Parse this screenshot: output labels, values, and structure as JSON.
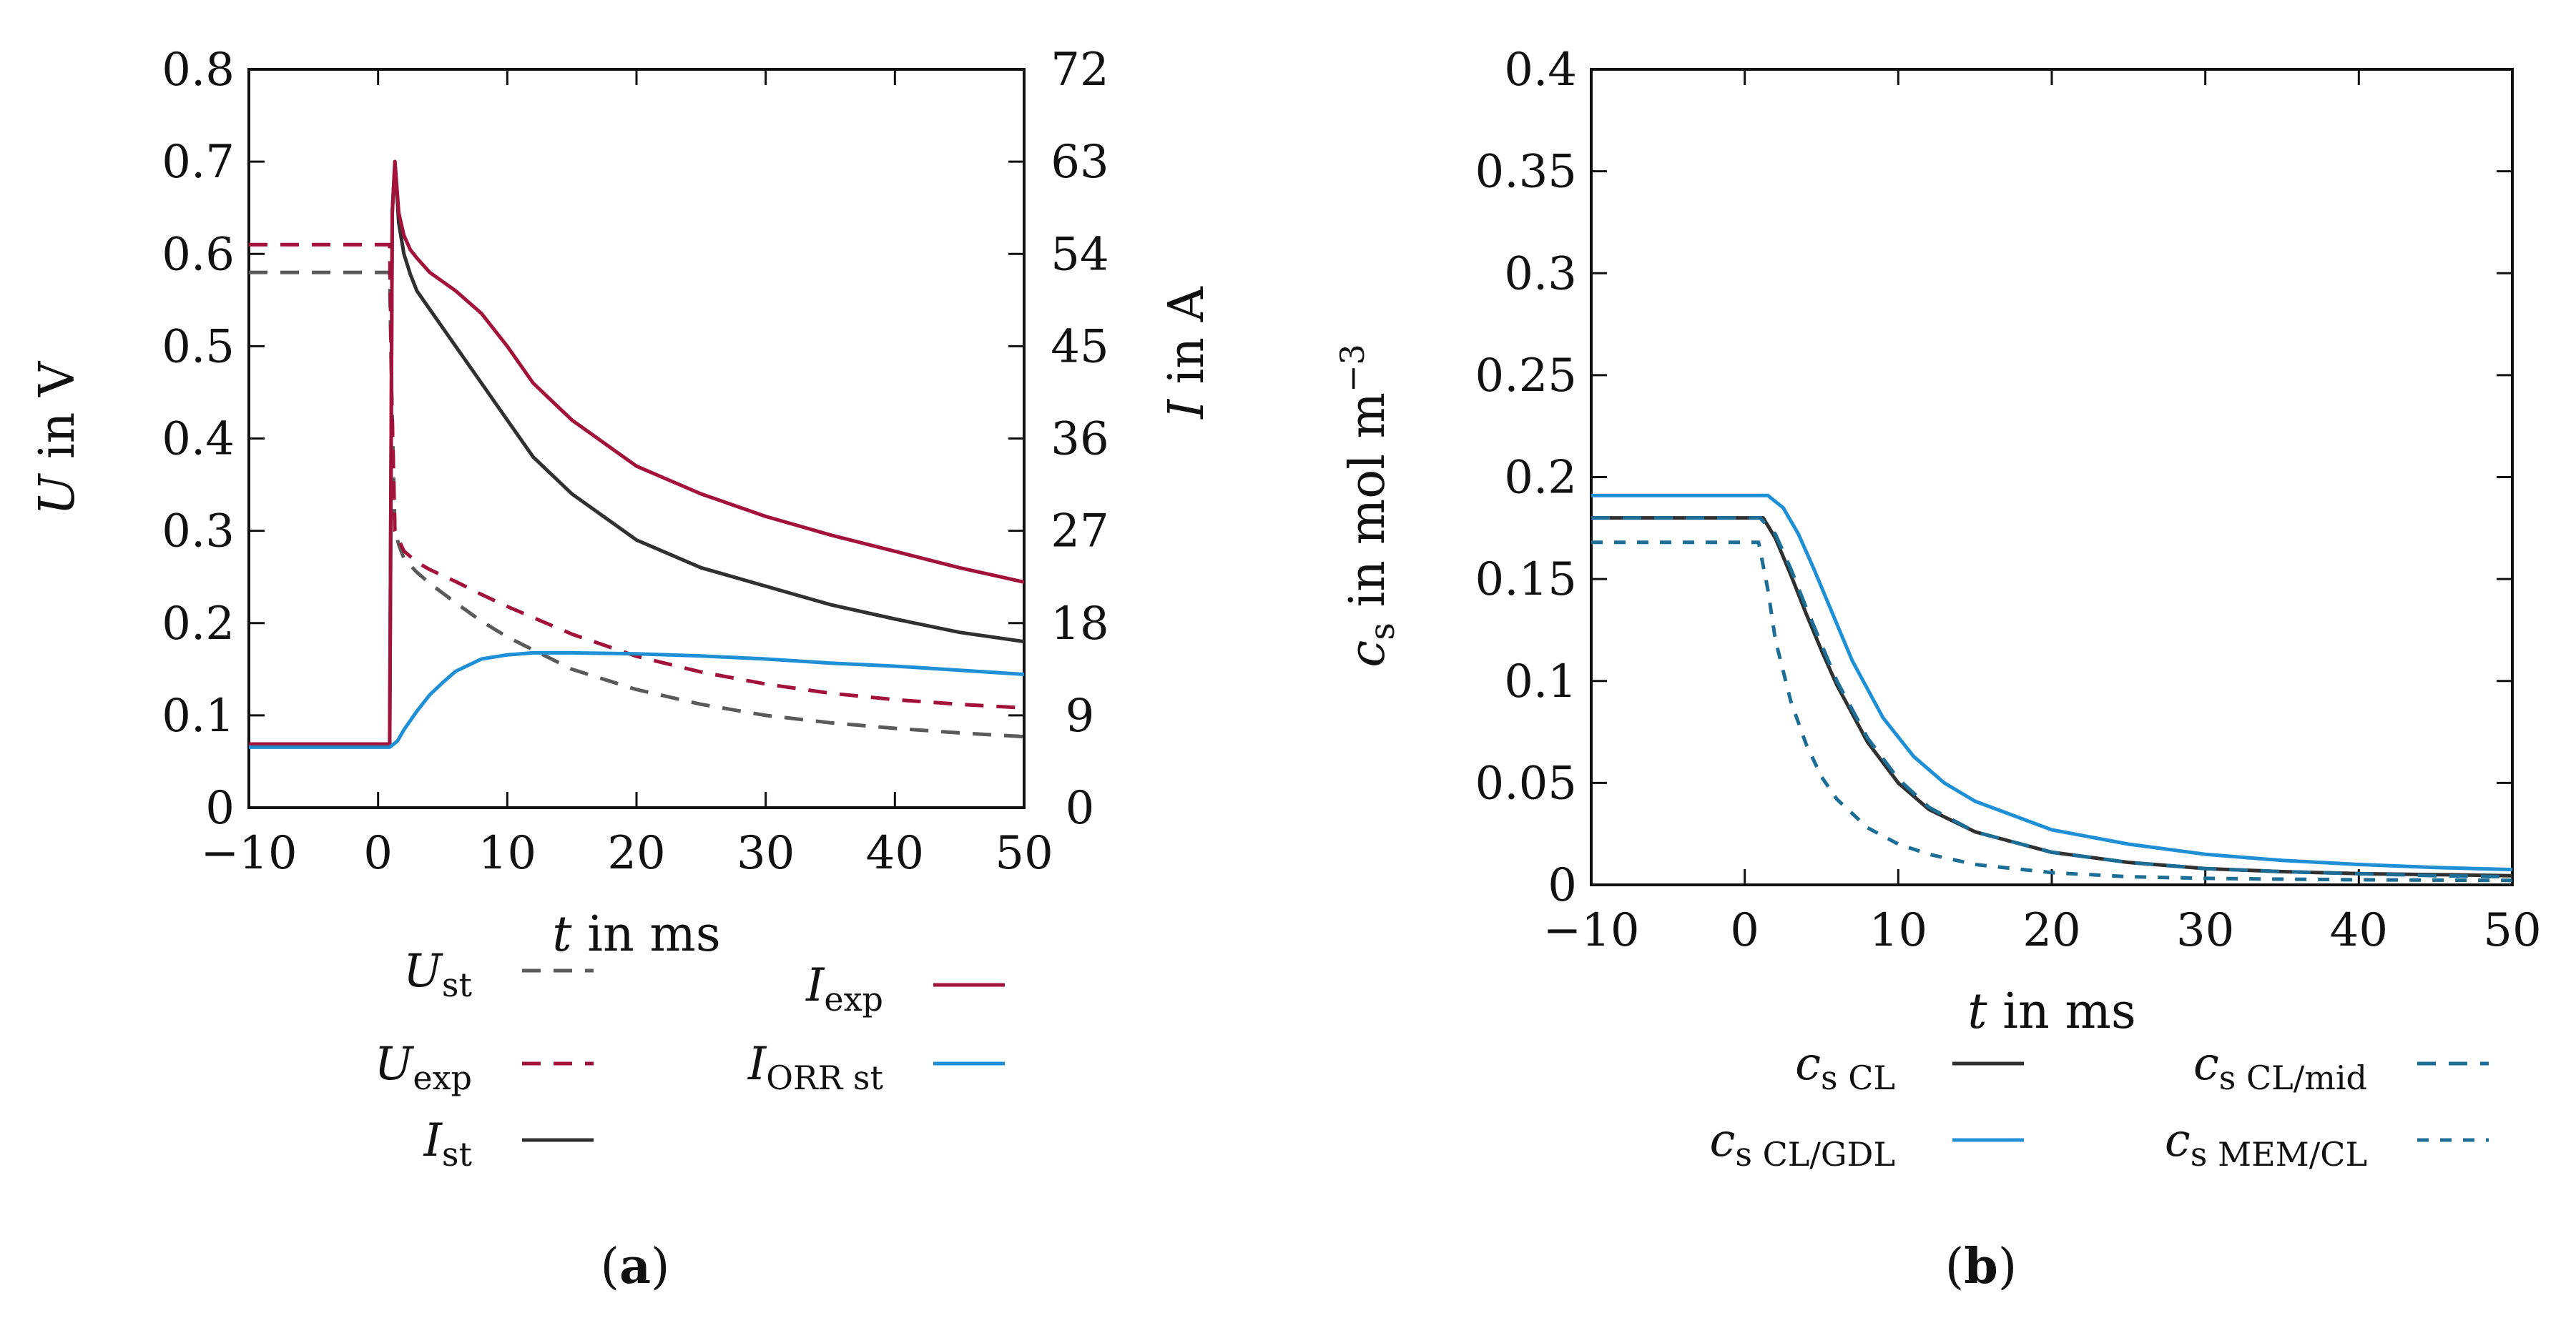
{
  "colors": {
    "black": "#303030",
    "gray": "#5a5a5a",
    "crimson": "#a3123a",
    "blue": "#1f8fd6",
    "teal": "#1c6e96"
  },
  "chart_data": [
    {
      "type": "line",
      "caption": "(a)",
      "xlabel": "t in ms",
      "ylabel": "U in V",
      "ylabel2": "I in A",
      "xlim": [
        -10,
        50
      ],
      "ylim": [
        0,
        0.8
      ],
      "y2lim": [
        0,
        72
      ],
      "xticks": [
        "−10",
        "0",
        "10",
        "20",
        "30",
        "40",
        "50"
      ],
      "yticks": [
        "0",
        "0.1",
        "0.2",
        "0.3",
        "0.4",
        "0.5",
        "0.6",
        "0.7",
        "0.8"
      ],
      "y2ticks": [
        "0",
        "9",
        "18",
        "27",
        "36",
        "45",
        "54",
        "63",
        "72"
      ],
      "grid": false,
      "legend_position": "below",
      "series": [
        {
          "name": "U_st",
          "axis": "left",
          "style": "dashed",
          "color": "gray",
          "x": [
            -10,
            0.9,
            1.05,
            1.3,
            1.6,
            2,
            3,
            4,
            6,
            8,
            10,
            15,
            20,
            25,
            30,
            35,
            40,
            45,
            50
          ],
          "y": [
            0.58,
            0.58,
            0.45,
            0.3,
            0.285,
            0.27,
            0.255,
            0.243,
            0.222,
            0.202,
            0.185,
            0.15,
            0.128,
            0.112,
            0.1,
            0.092,
            0.086,
            0.081,
            0.077
          ]
        },
        {
          "name": "U_exp",
          "axis": "left",
          "style": "dashed",
          "color": "crimson",
          "x": [
            -10,
            0.9,
            1.05,
            1.3,
            1.6,
            2,
            3,
            4,
            6,
            8,
            10,
            15,
            20,
            25,
            30,
            35,
            40,
            45,
            50
          ],
          "y": [
            0.61,
            0.61,
            0.45,
            0.3,
            0.29,
            0.278,
            0.266,
            0.258,
            0.245,
            0.231,
            0.218,
            0.188,
            0.164,
            0.147,
            0.134,
            0.124,
            0.117,
            0.112,
            0.108
          ]
        },
        {
          "name": "I_st",
          "axis": "right",
          "style": "solid",
          "color": "black",
          "x": [
            -10,
            0.9,
            1.1,
            1.3,
            1.6,
            2,
            2.5,
            3,
            4,
            5,
            6,
            8,
            10,
            12,
            15,
            20,
            25,
            30,
            35,
            40,
            45,
            50
          ],
          "y": [
            6.2,
            6.2,
            58,
            63,
            57,
            54,
            52,
            50.4,
            48.6,
            46.8,
            45,
            41.4,
            37.8,
            34.2,
            30.6,
            26.1,
            23.4,
            21.6,
            19.8,
            18.4,
            17.1,
            16.2
          ]
        },
        {
          "name": "I_exp",
          "axis": "right",
          "style": "solid",
          "color": "crimson",
          "x": [
            -10,
            0.9,
            1.1,
            1.3,
            1.6,
            2,
            2.5,
            3,
            4,
            5,
            6,
            8,
            10,
            12,
            15,
            20,
            25,
            30,
            35,
            40,
            45,
            50
          ],
          "y": [
            6.2,
            6.2,
            58,
            63,
            58,
            55.8,
            54.4,
            53.6,
            52.2,
            51.3,
            50.4,
            48.2,
            45,
            41.4,
            37.8,
            33.3,
            30.6,
            28.4,
            26.6,
            25,
            23.4,
            22
          ]
        },
        {
          "name": "I_ORR st",
          "axis": "right",
          "style": "solid",
          "color": "blue",
          "x": [
            -10,
            0.9,
            1.5,
            2,
            3,
            4,
            5,
            6,
            8,
            10,
            12,
            15,
            20,
            25,
            30,
            35,
            40,
            45,
            50
          ],
          "y": [
            5.9,
            5.9,
            6.5,
            7.6,
            9.4,
            11,
            12.2,
            13.3,
            14.5,
            14.9,
            15.1,
            15.1,
            15.0,
            14.8,
            14.5,
            14.1,
            13.8,
            13.4,
            13
          ]
        }
      ],
      "legend": [
        {
          "label": "U",
          "sub": "st",
          "series": "U_st"
        },
        {
          "label": "U",
          "sub": "exp",
          "series": "U_exp"
        },
        {
          "label": "I",
          "sub": "st",
          "series": "I_st"
        },
        {
          "label": "I",
          "sub": "exp",
          "series": "I_exp"
        },
        {
          "label": "I",
          "sub": "ORR st",
          "series": "I_ORR st"
        }
      ]
    },
    {
      "type": "line",
      "caption": "(b)",
      "xlabel": "t in ms",
      "ylabel": "c_s in mol m^−3",
      "xlim": [
        -10,
        50
      ],
      "ylim": [
        0,
        0.4
      ],
      "xticks": [
        "−10",
        "0",
        "10",
        "20",
        "30",
        "40",
        "50"
      ],
      "yticks": [
        "0",
        "0.05",
        "0.1",
        "0.15",
        "0.2",
        "0.25",
        "0.3",
        "0.35",
        "0.4"
      ],
      "grid": false,
      "legend_position": "below",
      "series": [
        {
          "name": "c_s CL",
          "style": "solid",
          "color": "black",
          "x": [
            -10,
            1.2,
            2,
            3,
            4,
            5,
            6,
            8,
            10,
            12,
            15,
            20,
            25,
            30,
            35,
            40,
            45,
            50
          ],
          "y": [
            0.18,
            0.18,
            0.17,
            0.152,
            0.133,
            0.115,
            0.098,
            0.07,
            0.05,
            0.037,
            0.026,
            0.016,
            0.011,
            0.008,
            0.0065,
            0.0055,
            0.005,
            0.0045
          ]
        },
        {
          "name": "c_s CL/GDL",
          "style": "solid",
          "color": "blue",
          "x": [
            -10,
            1.5,
            2.5,
            3.5,
            4.5,
            5.5,
            7,
            9,
            11,
            13,
            15,
            20,
            25,
            30,
            35,
            40,
            45,
            50
          ],
          "y": [
            0.191,
            0.191,
            0.185,
            0.172,
            0.155,
            0.137,
            0.11,
            0.082,
            0.063,
            0.05,
            0.041,
            0.027,
            0.02,
            0.015,
            0.012,
            0.01,
            0.0085,
            0.0075
          ]
        },
        {
          "name": "c_s CL/mid",
          "style": "dashed",
          "color": "teal",
          "x": [
            -10,
            1,
            2,
            3,
            4,
            5,
            6,
            8,
            10,
            12,
            15,
            20,
            25,
            30,
            35,
            40,
            45,
            50
          ],
          "y": [
            0.18,
            0.18,
            0.172,
            0.155,
            0.136,
            0.118,
            0.1,
            0.072,
            0.052,
            0.038,
            0.026,
            0.016,
            0.011,
            0.008,
            0.0065,
            0.0055,
            0.0045,
            0.004
          ]
        },
        {
          "name": "c_s MEM/CL",
          "style": "dashed",
          "color": "teal",
          "x": [
            -10,
            0.9,
            1.5,
            2,
            3,
            4,
            5,
            6,
            8,
            10,
            12,
            15,
            20,
            25,
            30,
            35,
            40,
            45,
            50
          ],
          "y": [
            0.168,
            0.168,
            0.145,
            0.12,
            0.09,
            0.069,
            0.053,
            0.042,
            0.028,
            0.02,
            0.015,
            0.01,
            0.006,
            0.004,
            0.0032,
            0.0028,
            0.0025,
            0.0023,
            0.0022
          ]
        }
      ],
      "legend": [
        {
          "label": "c",
          "sub": "s CL",
          "series": "c_s CL"
        },
        {
          "label": "c",
          "sub": "s CL/GDL",
          "series": "c_s CL/GDL"
        },
        {
          "label": "c",
          "sub": "s CL/mid",
          "series": "c_s CL/mid"
        },
        {
          "label": "c",
          "sub": "s MEM/CL",
          "series": "c_s MEM/CL"
        }
      ]
    }
  ]
}
